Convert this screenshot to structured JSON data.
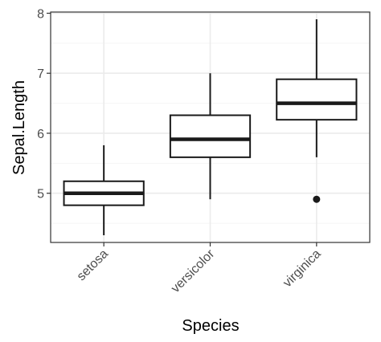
{
  "chart_data": {
    "type": "box",
    "xlabel": "Species",
    "ylabel": "Sepal.Length",
    "categories": [
      "setosa",
      "versicolor",
      "virginica"
    ],
    "ylim": [
      4.18,
      8.02
    ],
    "yticks": [
      5,
      6,
      7,
      8
    ],
    "ytick_labels": [
      "5",
      "6",
      "7",
      "8"
    ],
    "boxes": [
      {
        "category": "setosa",
        "whisker_low": 4.3,
        "q1": 4.8,
        "median": 5.0,
        "q3": 5.2,
        "whisker_high": 5.8,
        "outliers": []
      },
      {
        "category": "versicolor",
        "whisker_low": 4.9,
        "q1": 5.6,
        "median": 5.9,
        "q3": 6.3,
        "whisker_high": 7.0,
        "outliers": []
      },
      {
        "category": "virginica",
        "whisker_low": 5.6,
        "q1": 6.225,
        "median": 6.5,
        "q3": 6.9,
        "whisker_high": 7.9,
        "outliers": [
          4.9
        ]
      }
    ],
    "grid": true,
    "colors": {
      "panel_border": "#333333",
      "grid_major": "#ebebeb",
      "grid_minor": "#f5f5f5",
      "box_fill": "#ffffff",
      "box_stroke": "#1a1a1a"
    }
  }
}
